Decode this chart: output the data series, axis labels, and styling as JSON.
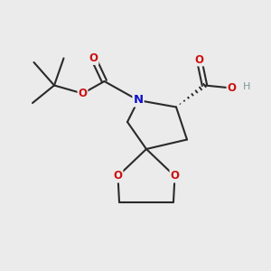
{
  "background_color": "#ebebeb",
  "bond_color": "#2a2a2a",
  "bond_width": 1.5,
  "N_color": "#1010cc",
  "O_color": "#cc1010",
  "H_color": "#7a9a9a",
  "figsize": [
    3.0,
    3.0
  ],
  "dpi": 100,
  "xlim": [
    0,
    10
  ],
  "ylim": [
    0,
    10
  ]
}
